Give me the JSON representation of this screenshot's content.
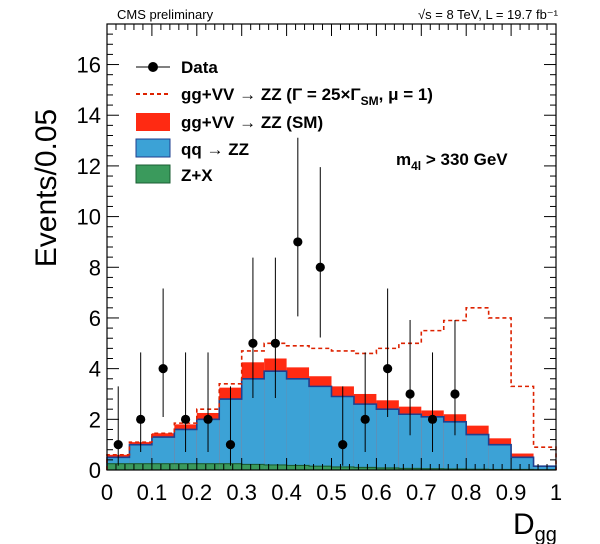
{
  "chart_data": {
    "type": "histogram",
    "header_left": "CMS preliminary",
    "header_right": "√s = 8 TeV, L = 19.7 fb⁻¹",
    "xlabel": "D",
    "xlabel_sub": "gg",
    "ylabel": "Events/0.05",
    "xlim": [
      0,
      1
    ],
    "ylim": [
      0,
      17.6
    ],
    "x_ticks": [
      0,
      0.1,
      0.2,
      0.3,
      0.4,
      0.5,
      0.6,
      0.7,
      0.8,
      0.9,
      1
    ],
    "x_tick_labels": [
      "0",
      "0.1",
      "0.2",
      "0.3",
      "0.4",
      "0.5",
      "0.6",
      "0.7",
      "0.8",
      "0.9",
      "1"
    ],
    "y_ticks": [
      0,
      2,
      4,
      6,
      8,
      10,
      12,
      14,
      16
    ],
    "y_tick_labels": [
      "0",
      "2",
      "4",
      "6",
      "8",
      "10",
      "12",
      "14",
      "16"
    ],
    "bin_edges": [
      0,
      0.05,
      0.1,
      0.15,
      0.2,
      0.25,
      0.3,
      0.35,
      0.4,
      0.45,
      0.5,
      0.55,
      0.6,
      0.65,
      0.7,
      0.75,
      0.8,
      0.85,
      0.9,
      0.95,
      1.0
    ],
    "series": [
      {
        "name": "Z+X",
        "color": "#2e8b57",
        "fill": "#3a9a5c",
        "values": [
          0.25,
          0.25,
          0.25,
          0.25,
          0.25,
          0.25,
          0.22,
          0.2,
          0.18,
          0.15,
          0.12,
          0.1,
          0.08,
          0.06,
          0.05,
          0.04,
          0.03,
          0.02,
          0.02,
          0.01
        ]
      },
      {
        "name": "qq → ZZ",
        "color": "#1f3f8f",
        "fill": "#3ca2d6",
        "stack_top": [
          0.5,
          1.0,
          1.3,
          1.6,
          2.0,
          2.8,
          3.6,
          3.9,
          3.6,
          3.3,
          2.9,
          2.6,
          2.4,
          2.2,
          2.1,
          1.9,
          1.4,
          1.0,
          0.5,
          0.15
        ]
      },
      {
        "name": "gg+VV → ZZ (SM)",
        "color": "#ff2200",
        "fill": "#ff2a12",
        "stack_top": [
          0.6,
          1.1,
          1.45,
          1.8,
          2.25,
          3.25,
          4.25,
          4.4,
          4.05,
          3.7,
          3.3,
          3.0,
          2.75,
          2.5,
          2.35,
          2.2,
          1.75,
          1.25,
          0.65,
          0.15
        ]
      },
      {
        "name": "gg+VV → ZZ (Γ = 25×ΓSM, μ = 1)",
        "color": "#dd2200",
        "line_style": "dashed",
        "values": [
          0.6,
          1.1,
          1.45,
          1.85,
          2.4,
          3.4,
          4.7,
          5.0,
          4.9,
          4.8,
          4.7,
          4.6,
          4.8,
          5.0,
          5.5,
          5.9,
          6.4,
          6.0,
          3.3,
          0.9
        ]
      },
      {
        "name": "Data",
        "type": "points",
        "color": "#000000",
        "x": [
          0.025,
          0.075,
          0.125,
          0.175,
          0.225,
          0.275,
          0.325,
          0.375,
          0.425,
          0.475,
          0.525,
          0.575,
          0.625,
          0.675,
          0.725,
          0.775
        ],
        "y": [
          1,
          2,
          4,
          2,
          2,
          1,
          5,
          5,
          9,
          8,
          1,
          2,
          4,
          3,
          2,
          3
        ],
        "err_low": [
          0.83,
          1.29,
          1.91,
          1.29,
          1.29,
          0.83,
          2.16,
          2.16,
          2.94,
          2.77,
          0.83,
          1.29,
          1.91,
          1.63,
          1.29,
          1.63
        ],
        "err_high": [
          2.3,
          2.64,
          3.16,
          2.64,
          2.64,
          2.3,
          3.38,
          3.38,
          4.11,
          3.95,
          2.3,
          2.64,
          3.16,
          2.92,
          2.64,
          2.92
        ]
      }
    ],
    "legend": [
      {
        "kind": "marker",
        "label": "Data"
      },
      {
        "kind": "dashed",
        "label": "gg+VV → ZZ (Γ = 25×Γ",
        "label_sub": "SM",
        "label_end": ", μ = 1)"
      },
      {
        "kind": "box",
        "color": "#ff2a12",
        "label": "gg+VV → ZZ (SM)"
      },
      {
        "kind": "box",
        "color": "#3ca2d6",
        "label": "qq → ZZ"
      },
      {
        "kind": "box",
        "color": "#3a9a5c",
        "label": "Z+X"
      }
    ],
    "annotation": "m",
    "annotation_sub": "4l",
    "annotation_end": " > 330 GeV",
    "legend_position": "top-left"
  }
}
